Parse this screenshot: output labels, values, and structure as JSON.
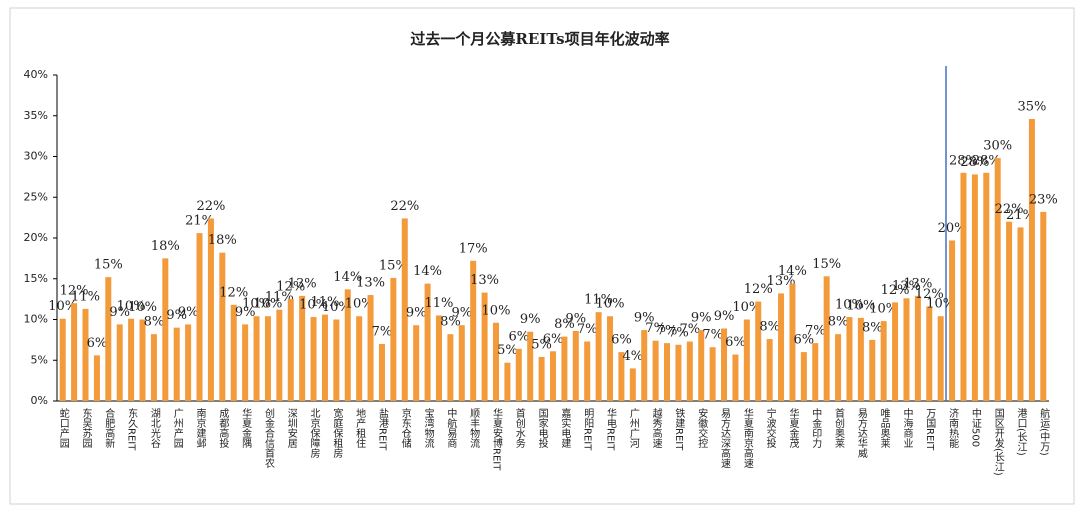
{
  "chart_data": {
    "type": "bar",
    "title": "过去一个月公募REITs项目年化波动率",
    "categories": [
      "蛇口产园",
      null,
      "东吴苏园",
      null,
      "合肥高新",
      null,
      "东久REIT",
      null,
      "湖北光谷",
      null,
      "广州产园",
      null,
      "南京建邺",
      null,
      "成都高投",
      null,
      "华夏金隅",
      null,
      "创金合信首农",
      null,
      "深圳安居",
      null,
      "北京保障房",
      null,
      "宽庭保租房",
      null,
      "地产租住",
      null,
      "盐港REIT",
      null,
      "京东仓储",
      null,
      "宝湾物流",
      null,
      "中航易商",
      null,
      "顺丰物流",
      null,
      "华夏安博REIT",
      null,
      "首创水务",
      null,
      "国家电投",
      null,
      "嘉实电建",
      null,
      "明阳REIT",
      null,
      "华电REIT",
      null,
      "广州广河",
      null,
      "越秀高速",
      null,
      "铁建REIT",
      null,
      "安徽交控",
      null,
      "易方达深高速",
      null,
      "华夏南京高速",
      null,
      "宁波交投",
      null,
      "华夏金茂",
      null,
      "中金印力",
      null,
      "首创奥莱",
      null,
      "易方达华威",
      null,
      "唯品奥莱",
      null,
      "中海商业",
      null,
      "万国REIT",
      null,
      "济南热能",
      null,
      "中证500",
      null,
      "国区开发(长江)",
      null,
      "港口(长江)",
      null,
      "航运(中万)"
    ],
    "values": [
      10.1,
      12.0,
      11.3,
      5.6,
      15.2,
      9.4,
      10.1,
      10.0,
      8.2,
      17.5,
      9.0,
      9.4,
      20.6,
      22.4,
      18.2,
      11.8,
      9.4,
      10.4,
      10.4,
      11.2,
      12.5,
      12.9,
      10.3,
      10.6,
      10.0,
      13.7,
      10.4,
      13.0,
      7.0,
      15.1,
      22.4,
      9.3,
      14.4,
      10.5,
      8.2,
      9.3,
      17.2,
      13.3,
      9.6,
      4.7,
      6.4,
      8.5,
      5.4,
      6.1,
      7.9,
      8.6,
      7.3,
      10.9,
      10.4,
      6.0,
      4.0,
      8.7,
      7.4,
      7.1,
      6.9,
      7.3,
      8.7,
      6.6,
      8.9,
      5.7,
      10.0,
      12.2,
      7.6,
      13.2,
      14.4,
      6.0,
      7.1,
      15.3,
      8.2,
      10.3,
      10.2,
      7.5,
      9.8,
      12.1,
      12.6,
      12.9,
      11.6,
      10.4,
      19.7,
      28.0,
      27.8,
      28.0,
      29.8,
      22.0,
      21.3,
      34.6,
      23.2
    ],
    "value_labels": [
      "10%",
      "12%",
      "11%",
      "6%",
      "15%",
      "9%",
      "10%",
      "10%",
      "8%",
      "18%",
      "9%",
      "9%",
      "21%",
      "22%",
      "18%",
      "12%",
      "9%",
      "10%",
      "10%",
      "11%",
      "12%",
      "13%",
      "10%",
      "11%",
      "10%",
      "14%",
      "10%",
      "13%",
      "7%",
      "15%",
      "22%",
      "9%",
      "14%",
      "11%",
      "8%",
      "9%",
      "17%",
      "13%",
      "10%",
      "5%",
      "6%",
      "9%",
      "5%",
      "6%",
      "8%",
      "9%",
      "7%",
      "11%",
      "10%",
      "6%",
      "4%",
      "9%",
      "7%",
      "7%",
      "7%",
      "7%",
      "9%",
      "7%",
      "9%",
      "6%",
      "10%",
      "12%",
      "8%",
      "13%",
      "14%",
      "6%",
      "7%",
      "15%",
      "8%",
      "10%",
      "10%",
      "8%",
      "10%",
      "12%",
      "13%",
      "13%",
      "12%",
      "10%",
      "20%",
      "28%",
      "28%",
      "28%",
      "30%",
      "22%",
      "21%",
      "35%",
      "23%"
    ],
    "color": "#f39a3b",
    "ylim": [
      0,
      40
    ],
    "yticks": [
      {
        "value": 0,
        "label": "0%"
      },
      {
        "value": 5,
        "label": "5%"
      },
      {
        "value": 10,
        "label": "10%"
      },
      {
        "value": 15,
        "label": "15%"
      },
      {
        "value": 20,
        "label": "20%"
      },
      {
        "value": 25,
        "label": "25%"
      },
      {
        "value": 30,
        "label": "30%"
      },
      {
        "value": 35,
        "label": "35%"
      },
      {
        "value": 40,
        "label": "40%"
      }
    ],
    "grid": false
  }
}
